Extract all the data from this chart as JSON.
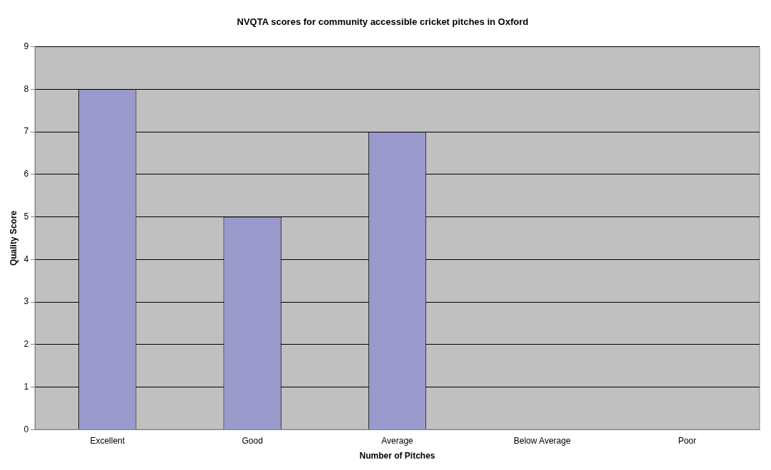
{
  "chart_data": {
    "type": "bar",
    "title": "NVQTA scores for community accessible cricket pitches in Oxford",
    "xlabel": "Number of Pitches",
    "ylabel": "Quality Score",
    "categories": [
      "Excellent",
      "Good",
      "Average",
      "Below Average",
      "Poor"
    ],
    "values": [
      8,
      5,
      7,
      0,
      0
    ],
    "color": "#9999cc",
    "ylim": [
      0,
      9
    ],
    "yticks": [
      0,
      1,
      2,
      3,
      4,
      5,
      6,
      7,
      8,
      9
    ],
    "grid": "y",
    "legend": false
  }
}
